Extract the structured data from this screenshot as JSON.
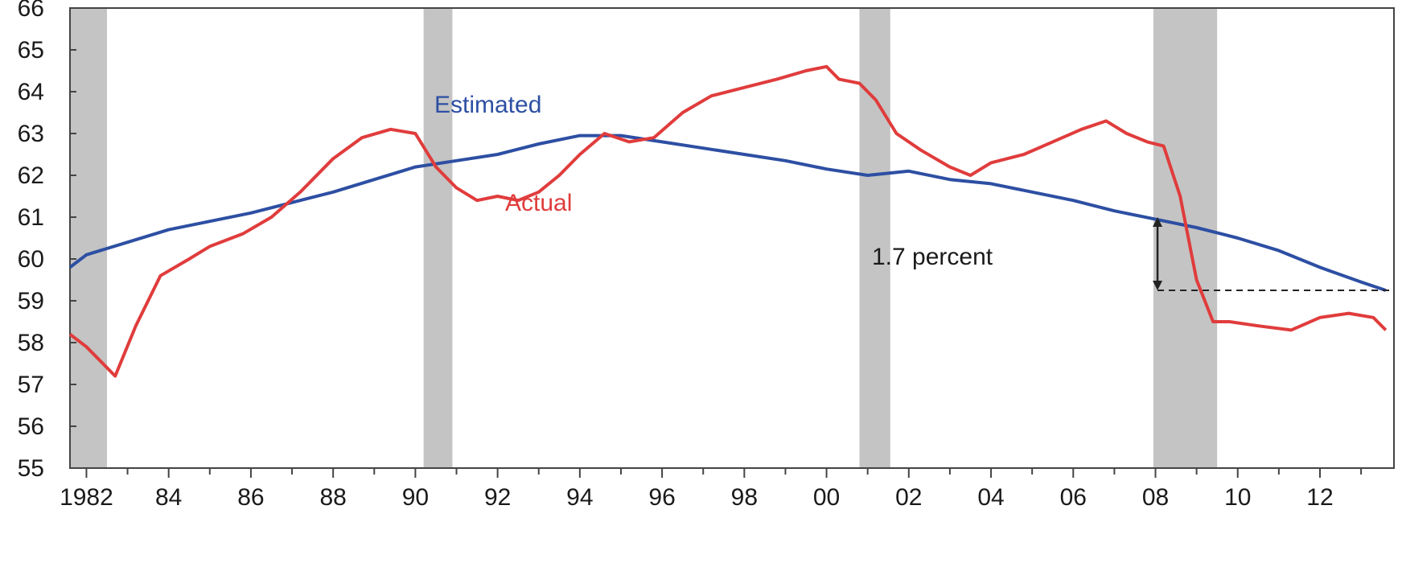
{
  "chart_data": {
    "type": "line",
    "title": "",
    "xlabel": "",
    "ylabel": "",
    "xlim": [
      1981.6,
      2013.8
    ],
    "ylim": [
      55,
      66
    ],
    "y_ticks": [
      55,
      56,
      57,
      58,
      59,
      60,
      61,
      62,
      63,
      64,
      65,
      66
    ],
    "x_ticks": [
      {
        "x": 1982,
        "label": "1982"
      },
      {
        "x": 1984,
        "label": "84"
      },
      {
        "x": 1986,
        "label": "86"
      },
      {
        "x": 1988,
        "label": "88"
      },
      {
        "x": 1990,
        "label": "90"
      },
      {
        "x": 1992,
        "label": "92"
      },
      {
        "x": 1994,
        "label": "94"
      },
      {
        "x": 1996,
        "label": "96"
      },
      {
        "x": 1998,
        "label": "98"
      },
      {
        "x": 2000,
        "label": "00"
      },
      {
        "x": 2002,
        "label": "02"
      },
      {
        "x": 2004,
        "label": "04"
      },
      {
        "x": 2006,
        "label": "06"
      },
      {
        "x": 2008,
        "label": "08"
      },
      {
        "x": 2010,
        "label": "10"
      },
      {
        "x": 2012,
        "label": "12"
      }
    ],
    "grid": false,
    "recessions": [
      [
        1981.6,
        1982.5
      ],
      [
        1990.2,
        1990.9
      ],
      [
        2000.8,
        2001.55
      ],
      [
        2007.95,
        2009.5
      ]
    ],
    "series": [
      {
        "name": "Estimated",
        "color": "#2d4fa3",
        "x": [
          1981.6,
          1982,
          1983,
          1984,
          1985,
          1986,
          1987,
          1988,
          1989,
          1990,
          1991,
          1992,
          1993,
          1994,
          1995,
          1996,
          1997,
          1998,
          1999,
          2000,
          2001,
          2002,
          2003,
          2004,
          2005,
          2006,
          2007,
          2008,
          2009,
          2010,
          2011,
          2012,
          2013,
          2013.6
        ],
        "y": [
          59.8,
          60.1,
          60.4,
          60.7,
          60.9,
          61.1,
          61.35,
          61.6,
          61.9,
          62.2,
          62.35,
          62.5,
          62.75,
          62.95,
          62.95,
          62.8,
          62.65,
          62.5,
          62.35,
          62.15,
          62.0,
          62.1,
          61.9,
          61.8,
          61.6,
          61.4,
          61.15,
          60.95,
          60.75,
          60.5,
          60.2,
          59.8,
          59.45,
          59.25
        ]
      },
      {
        "name": "Actual",
        "color": "#e03c3c",
        "x": [
          1981.6,
          1982,
          1982.7,
          1983.2,
          1983.8,
          1984.5,
          1985,
          1985.8,
          1986.5,
          1987.2,
          1988,
          1988.7,
          1989.4,
          1990,
          1990.5,
          1991,
          1991.5,
          1992,
          1992.5,
          1993,
          1993.5,
          1994,
          1994.6,
          1995.2,
          1995.8,
          1996.5,
          1997.2,
          1998,
          1998.8,
          1999.5,
          2000,
          2000.3,
          2000.8,
          2001.2,
          2001.7,
          2002.3,
          2003,
          2003.5,
          2004,
          2004.8,
          2005.5,
          2006.2,
          2006.8,
          2007.3,
          2007.8,
          2008.2,
          2008.6,
          2009,
          2009.4,
          2009.8,
          2010.5,
          2011.3,
          2012,
          2012.7,
          2013.3,
          2013.6
        ],
        "y": [
          58.2,
          57.9,
          57.2,
          58.4,
          59.6,
          60.0,
          60.3,
          60.6,
          61.0,
          61.6,
          62.4,
          62.9,
          63.1,
          63.0,
          62.2,
          61.7,
          61.4,
          61.5,
          61.4,
          61.6,
          62.0,
          62.5,
          63.0,
          62.8,
          62.9,
          63.5,
          63.9,
          64.1,
          64.3,
          64.5,
          64.6,
          64.3,
          64.2,
          63.8,
          63.0,
          62.6,
          62.2,
          62.0,
          62.3,
          62.5,
          62.8,
          63.1,
          63.3,
          63.0,
          62.8,
          62.7,
          61.5,
          59.5,
          58.5,
          58.5,
          58.4,
          58.3,
          58.6,
          58.7,
          58.6,
          58.3
        ]
      }
    ],
    "annotations": {
      "estimated_label": "Estimated",
      "actual_label": "Actual",
      "gap_label": "1.7 percent",
      "gap_x": 2008.05,
      "gap_from": 61.0,
      "gap_to": 59.25
    }
  }
}
